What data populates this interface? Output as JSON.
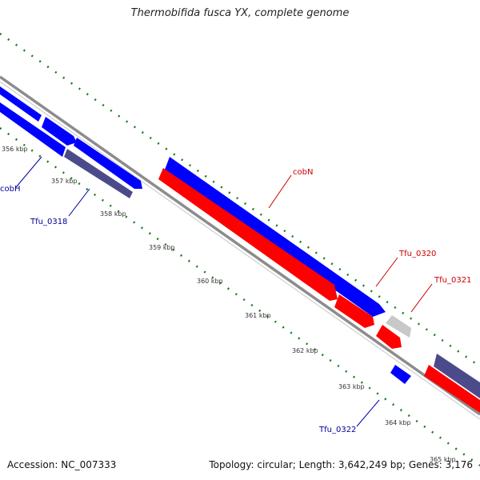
{
  "title": "Thermobifida fusca YX, complete genome",
  "footer": {
    "accession": "Accession: NC_007333",
    "stats": "Topology: circular; Length: 3,642,249 bp; Genes: 3,176"
  },
  "colors": {
    "forward_gene": "#0000ff",
    "reverse_gene": "#ff0000",
    "other_gene": "#4b4b8c",
    "pseudo_gene": "#c8c8c8",
    "backbone": "#8c8c8c",
    "ticks": "#1a7a1a",
    "label_forward": "#000099",
    "label_reverse": "#cc0000"
  },
  "tick_labels": [
    "356 kbp",
    "357 kbp",
    "358 kbp",
    "359 kbp",
    "360 kbp",
    "361 kbp",
    "362 kbp",
    "363 kbp",
    "364 kbp",
    "365 kbp"
  ],
  "gene_labels": {
    "cobH": "cobH",
    "Tfu_0318": "Tfu_0318",
    "cobN": "cobN",
    "Tfu_0320": "Tfu_0320",
    "Tfu_0321": "Tfu_0321",
    "Tfu_0322": "Tfu_0322"
  }
}
